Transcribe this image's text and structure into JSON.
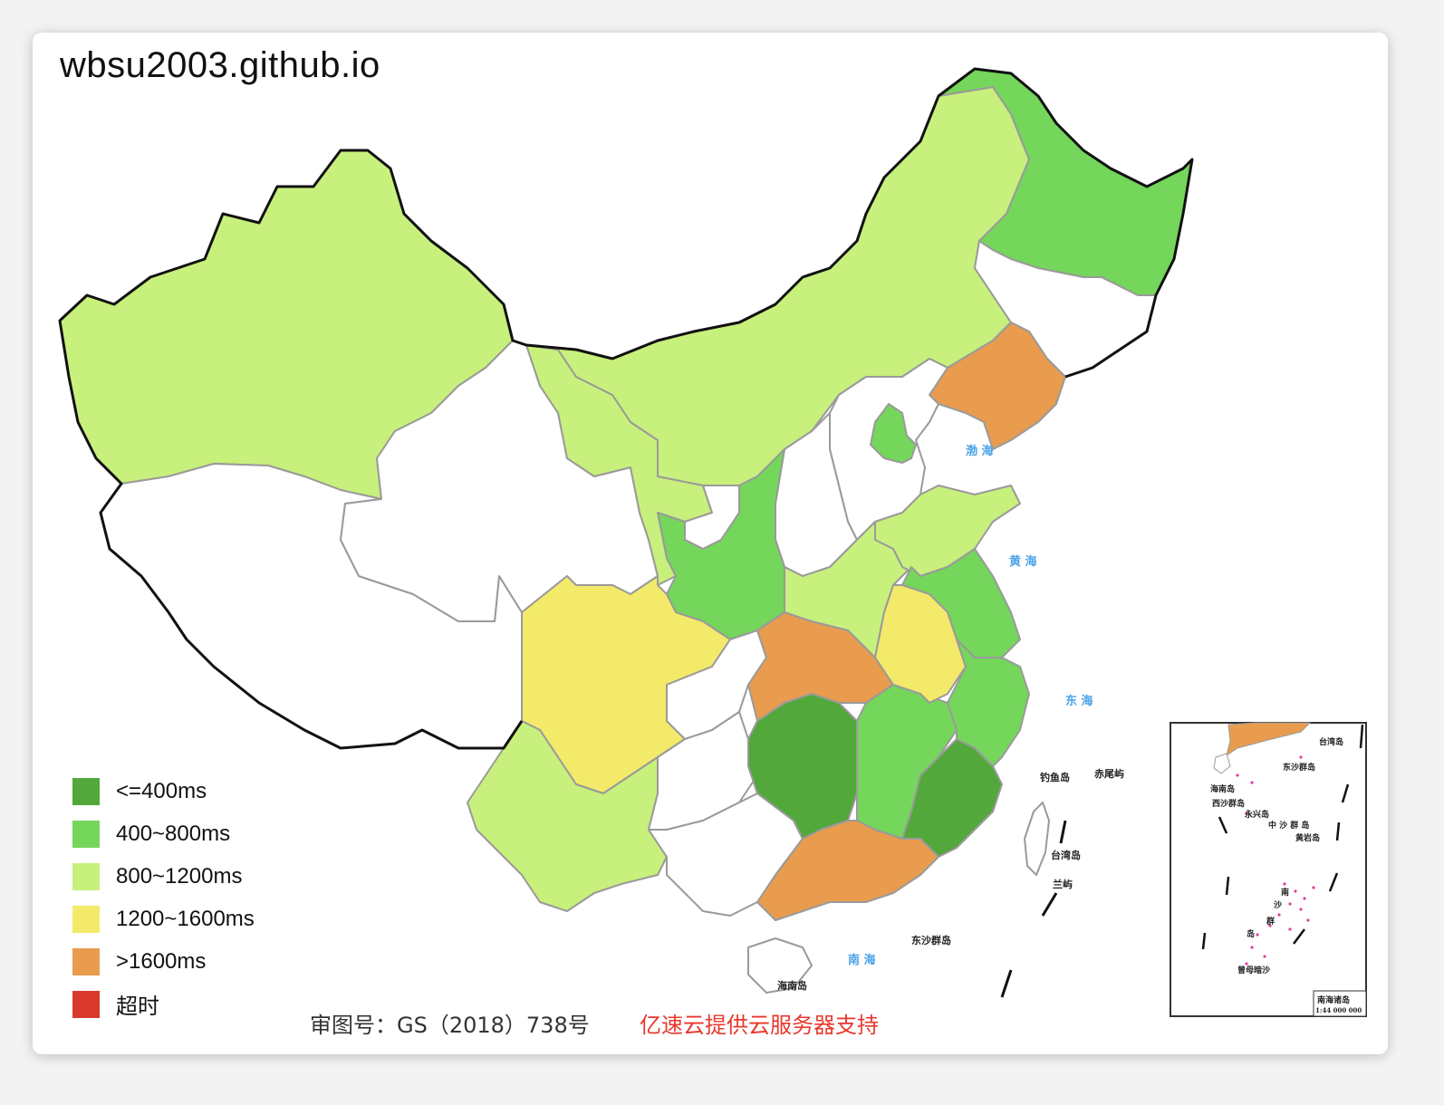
{
  "header": {
    "title": "wbsu2003.github.io"
  },
  "legend": {
    "items": [
      {
        "label": "<=400ms",
        "color": "#52a83a"
      },
      {
        "label": "400~800ms",
        "color": "#74d65a"
      },
      {
        "label": "800~1200ms",
        "color": "#c8f07c"
      },
      {
        "label": "1200~1600ms",
        "color": "#f3ea6a"
      },
      {
        "label": ">1600ms",
        "color": "#e99c4d"
      },
      {
        "label": "超时",
        "color": "#d9392b"
      }
    ]
  },
  "map": {
    "sea_labels": {
      "bohai": "渤 海",
      "huanghai": "黄 海",
      "donghai": "东 海",
      "nanhai": "南 海"
    },
    "place_labels": {
      "diaoyu": "钓鱼岛",
      "chiwei": "赤尾屿",
      "taiwan": "台湾岛",
      "lanyu": "兰屿",
      "dongsha": "东沙群岛",
      "hainan": "海南岛"
    },
    "inset": {
      "taiwan": "台湾岛",
      "dongsha": "东沙群岛",
      "hainan": "海南岛",
      "xisha": "西沙群岛",
      "yongxing": "永兴岛",
      "zhongsha": "中 沙 群 岛",
      "huangyan": "黄岩岛",
      "nansha_1": "南",
      "nansha_2": "沙",
      "nansha_3": "群",
      "nansha_4": "岛",
      "zengmu": "曾母暗沙",
      "title": "南海诸岛",
      "scale": "1:44 000 000"
    },
    "regions": {
      "xinjiang": "800~1200ms",
      "xizang": "",
      "qinghai": "",
      "gansu": "800~1200ms",
      "neimenggu": "800~1200ms",
      "heilongjiang": "400~800ms",
      "jilin": "",
      "liaoning": ">1600ms",
      "hebei": "",
      "beijing": "400~800ms",
      "shanxi": "",
      "shaanxi": "400~800ms",
      "ningxia": "",
      "sichuan": "1200~1600ms",
      "chongqing": "",
      "yunnan": "800~1200ms",
      "guizhou": "",
      "guangxi": "",
      "hubei": ">1600ms",
      "hunan": "<=400ms",
      "jiangxi": "400~800ms",
      "fujian": "<=400ms",
      "guangdong": ">1600ms",
      "henan": "800~1200ms",
      "shandong": "800~1200ms",
      "jiangsu": "400~800ms",
      "anhui": "1200~1600ms",
      "zhejiang": "400~800ms",
      "hainan": "",
      "taiwan": ""
    }
  },
  "footer": {
    "approval": "审图号：GS（2018）738号",
    "sponsor": "亿速云提供云服务器支持"
  }
}
